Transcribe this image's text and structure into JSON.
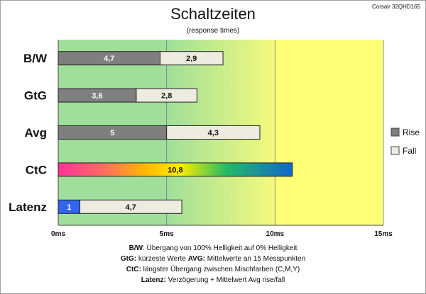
{
  "chart_data": {
    "type": "bar",
    "stacked": true,
    "orientation": "horizontal",
    "title": "Schaltzeiten",
    "subtitle": "(response times)",
    "model_label": "Corsair 32QHD165",
    "categories": [
      "B/W",
      "GtG",
      "Avg",
      "CtC",
      "Latenz"
    ],
    "series": [
      {
        "name": "Rise",
        "values": [
          4.7,
          3.6,
          5,
          null,
          1
        ],
        "labels": [
          "4,7",
          "3,6",
          "5",
          "",
          "1"
        ]
      },
      {
        "name": "Fall",
        "values": [
          2.9,
          2.8,
          4.3,
          null,
          4.7
        ],
        "labels": [
          "2,9",
          "2,8",
          "4,3",
          "",
          "4,7"
        ]
      }
    ],
    "ctc": {
      "value": 10.8,
      "label": "10,8"
    },
    "xlim": [
      0,
      15
    ],
    "xticks": [
      0,
      5,
      10,
      15
    ],
    "xtick_labels": [
      "0ms",
      "5ms",
      "10ms",
      "15ms"
    ],
    "grid": true,
    "legend_position": "right",
    "background_zones": [
      {
        "from": 0,
        "to": 5,
        "color": "#9fdf9a"
      },
      {
        "from": 5,
        "to": 10,
        "color": "gradient green→yellow"
      },
      {
        "from": 10,
        "to": 15,
        "color": "#ffff77"
      }
    ],
    "colors": {
      "rise": "#7f7f7f",
      "fall": "#eeece1",
      "latenz_rise": "#3366ee",
      "zone_green": "#9fdf9a",
      "zone_yellow": "#ffff77"
    }
  },
  "notes": [
    {
      "segments": [
        {
          "text": "B/W",
          "bold": true
        },
        {
          "text": ":  Übergang von 100% Helligkeit auf 0% Helligkeit",
          "bold": false
        }
      ]
    },
    {
      "segments": [
        {
          "text": "GtG:",
          "bold": true
        },
        {
          "text": " kürzeste  Werte        ",
          "bold": false
        },
        {
          "text": "AVG:",
          "bold": true
        },
        {
          "text": " Mittelwerte  an 15 Messpunkten",
          "bold": false
        }
      ]
    },
    {
      "segments": [
        {
          "text": "CtC:",
          "bold": true
        },
        {
          "text": " längster Übergang  zwischen Mischfarben (C,M,Y)",
          "bold": false
        }
      ]
    },
    {
      "segments": [
        {
          "text": "Latenz:",
          "bold": true
        },
        {
          "text": " Verzögerung  + Mittelwert  Avg rise/fall",
          "bold": false
        }
      ]
    }
  ]
}
